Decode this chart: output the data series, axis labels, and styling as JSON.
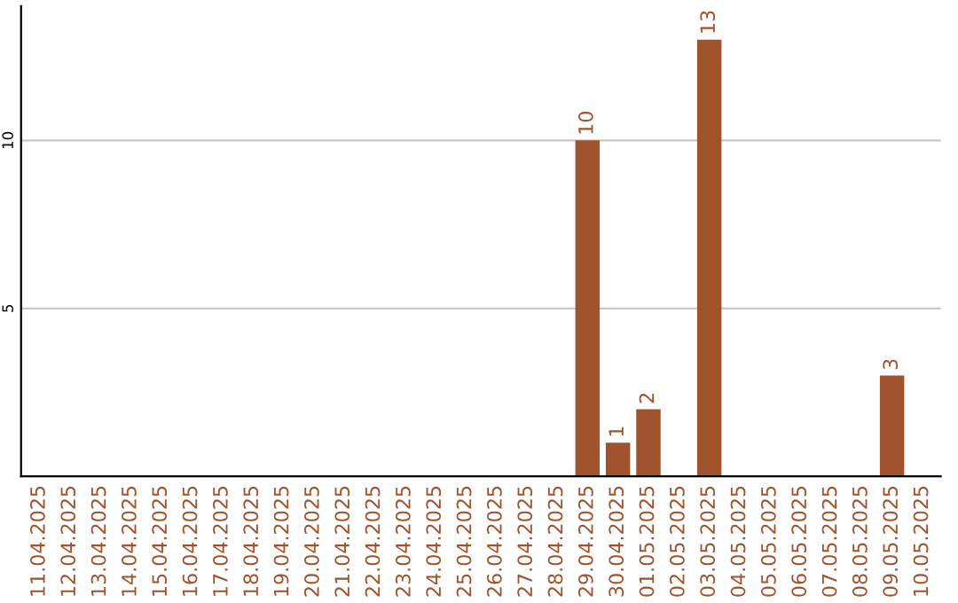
{
  "chart_data": {
    "type": "bar",
    "categories": [
      "11.04.2025",
      "12.04.2025",
      "13.04.2025",
      "14.04.2025",
      "15.04.2025",
      "16.04.2025",
      "17.04.2025",
      "18.04.2025",
      "19.04.2025",
      "20.04.2025",
      "21.04.2025",
      "22.04.2025",
      "23.04.2025",
      "24.04.2025",
      "25.04.2025",
      "26.04.2025",
      "27.04.2025",
      "28.04.2025",
      "29.04.2025",
      "30.04.2025",
      "01.05.2025",
      "02.05.2025",
      "03.05.2025",
      "04.05.2025",
      "05.05.2025",
      "06.05.2025",
      "07.05.2025",
      "08.05.2025",
      "09.05.2025",
      "10.05.2025"
    ],
    "values": [
      0,
      0,
      0,
      0,
      0,
      0,
      0,
      0,
      0,
      0,
      0,
      0,
      0,
      0,
      0,
      0,
      0,
      0,
      10,
      1,
      2,
      0,
      13,
      0,
      0,
      0,
      0,
      0,
      3,
      0
    ],
    "value_labels": [
      null,
      null,
      null,
      null,
      null,
      null,
      null,
      null,
      null,
      null,
      null,
      null,
      null,
      null,
      null,
      null,
      null,
      null,
      "10",
      "1",
      "2",
      null,
      "13",
      null,
      null,
      null,
      null,
      null,
      "3",
      null
    ],
    "color": "#a0522d",
    "ylim": [
      0,
      14
    ],
    "yticks": [
      5,
      10
    ],
    "grid": "y"
  }
}
